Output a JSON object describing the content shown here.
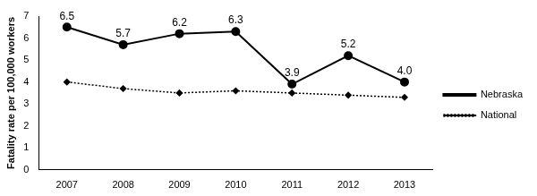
{
  "chart_data": {
    "type": "line",
    "y_label": "Fatality rate per 100,000 workers",
    "categories": [
      "2007",
      "2008",
      "2009",
      "2010",
      "2011",
      "2012",
      "2013"
    ],
    "series": [
      {
        "name": "Nebraska",
        "color": "#000000",
        "marker": "circle",
        "line_style": "solid",
        "data_labels": true,
        "values": [
          6.5,
          5.7,
          6.2,
          6.3,
          3.9,
          5.2,
          4.0
        ],
        "value_labels": [
          "6.5",
          "5.7",
          "6.2",
          "6.3",
          "3.9",
          "5.2",
          "4.0"
        ]
      },
      {
        "name": "National",
        "color": "#000000",
        "marker": "diamond",
        "line_style": "dotted",
        "data_labels": false,
        "values": [
          4.0,
          3.7,
          3.5,
          3.6,
          3.5,
          3.4,
          3.3
        ]
      }
    ],
    "ylim": [
      0,
      7
    ],
    "yticks": [
      0,
      1,
      2,
      3,
      4,
      5,
      6,
      7
    ],
    "grid": false,
    "legend": "right"
  }
}
